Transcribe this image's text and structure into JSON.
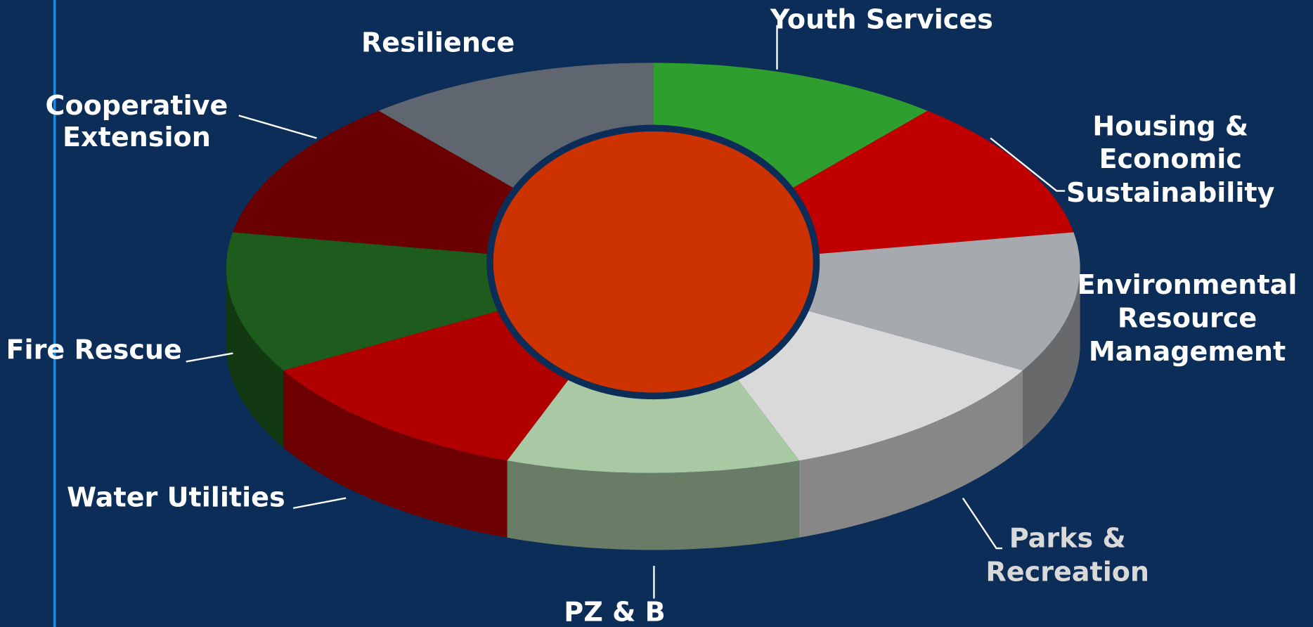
{
  "segments": [
    {
      "label": [
        "Youth Services"
      ],
      "color": "#2e9e2e"
    },
    {
      "label": [
        "Housing &",
        "Economic",
        "Sustainability"
      ],
      "color": "#c00000"
    },
    {
      "label": [
        "Environmental",
        "Resource",
        "Management"
      ],
      "color": "#a6a9ad"
    },
    {
      "label": [
        "Parks &",
        "Recreation"
      ],
      "color": "#d9d9d9"
    },
    {
      "label": [
        "PZ & B"
      ],
      "color": "#a9c9a4"
    },
    {
      "label": [
        "Water Utilities"
      ],
      "color": "#b00000"
    },
    {
      "label": [
        "Fire Rescue"
      ],
      "color": "#1e5c1e"
    },
    {
      "label": [
        "Cooperative",
        "Extension"
      ],
      "color": "#6b0000"
    },
    {
      "label": [
        "Resilience"
      ],
      "color": "#5f6670"
    }
  ]
}
